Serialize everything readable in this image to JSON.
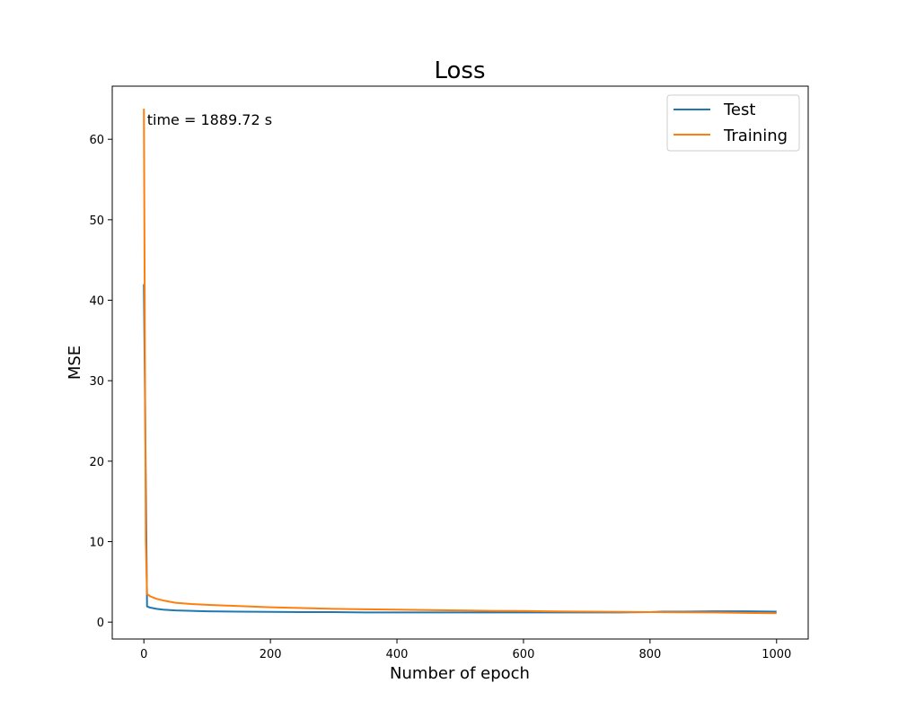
{
  "chart_data": {
    "type": "line",
    "title": "Loss",
    "xlabel": "Number of epoch",
    "ylabel": "MSE",
    "xlim": [
      -50,
      1050
    ],
    "ylim": [
      -2.1,
      66.6
    ],
    "xticks": [
      0,
      200,
      400,
      600,
      800,
      1000
    ],
    "yticks": [
      0,
      10,
      20,
      30,
      40,
      50,
      60
    ],
    "grid": false,
    "legend_position": "top-right",
    "annotation": {
      "text": "time = 1889.72 s",
      "x": 5,
      "y": 62
    },
    "series": [
      {
        "name": "Test",
        "color": "#1f77b4",
        "x": [
          0,
          5,
          10,
          20,
          30,
          50,
          75,
          100,
          150,
          200,
          250,
          300,
          350,
          400,
          450,
          500,
          550,
          600,
          650,
          700,
          750,
          800,
          820,
          850,
          900,
          950,
          1000
        ],
        "y": [
          42.0,
          1.95,
          1.8,
          1.65,
          1.55,
          1.45,
          1.4,
          1.35,
          1.3,
          1.28,
          1.25,
          1.25,
          1.2,
          1.2,
          1.2,
          1.2,
          1.2,
          1.2,
          1.2,
          1.2,
          1.2,
          1.25,
          1.3,
          1.3,
          1.35,
          1.35,
          1.3
        ]
      },
      {
        "name": "Training",
        "color": "#ff7f0e",
        "x": [
          0,
          3,
          5,
          10,
          20,
          30,
          50,
          75,
          100,
          150,
          200,
          250,
          300,
          350,
          400,
          450,
          500,
          550,
          600,
          650,
          700,
          750,
          800,
          850,
          900,
          950,
          1000
        ],
        "y": [
          63.8,
          10.0,
          3.5,
          3.2,
          2.9,
          2.7,
          2.4,
          2.25,
          2.15,
          2.0,
          1.85,
          1.75,
          1.65,
          1.6,
          1.55,
          1.5,
          1.45,
          1.4,
          1.38,
          1.33,
          1.3,
          1.28,
          1.25,
          1.22,
          1.2,
          1.15,
          1.1
        ]
      }
    ]
  }
}
